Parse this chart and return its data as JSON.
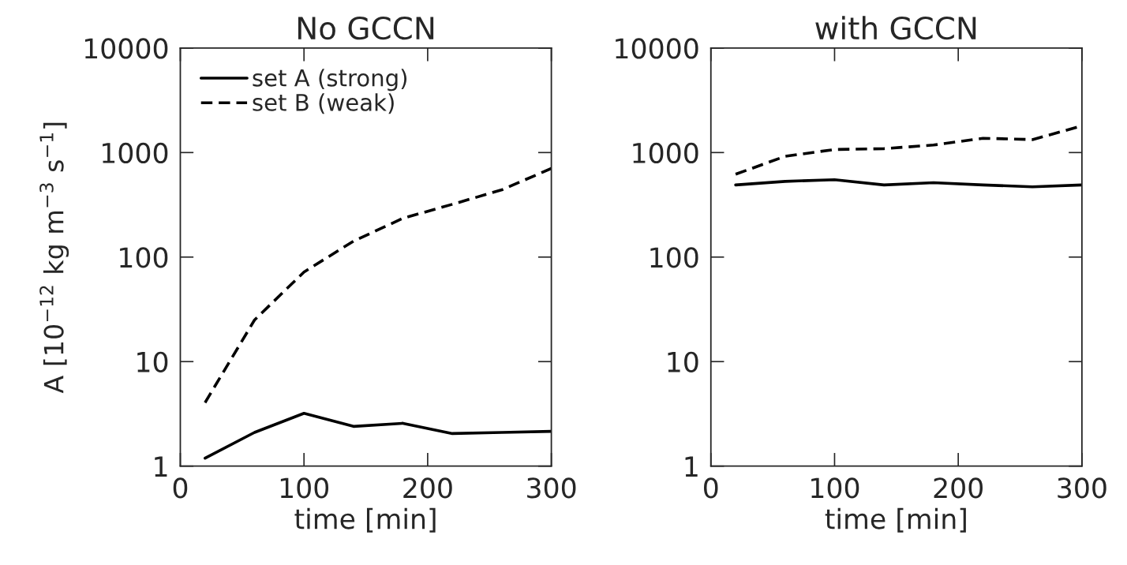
{
  "chart_data": [
    {
      "type": "line",
      "title": "No GCCN",
      "xlabel": "time [min]",
      "ylabel": "A [10$^{−12}$ kg m$^{−3}$ s$^{−1}$]",
      "log": "y",
      "grid": false,
      "legend": "top left",
      "xlim": [
        0,
        300
      ],
      "xticks": [
        0,
        100,
        200,
        300
      ],
      "ylim": [
        1,
        10000
      ],
      "yticks": [
        1,
        10,
        100,
        1000,
        10000
      ],
      "x": [
        20,
        60,
        100,
        140,
        180,
        220,
        260,
        300
      ],
      "series": [
        {
          "name": "set A (strong)",
          "color": "#000000",
          "line_style": "solid",
          "values": [
            1.19,
            2.1,
            3.2,
            2.4,
            2.57,
            2.05,
            2.1,
            2.15
          ]
        },
        {
          "name": "set B (weak)",
          "color": "#000000",
          "line_style": "dashed",
          "values": [
            4.05,
            25,
            72,
            142,
            235,
            320,
            440,
            705
          ]
        }
      ]
    },
    {
      "type": "line",
      "title": "with GCCN",
      "xlabel": "time [min]",
      "log": "y",
      "grid": false,
      "xlim": [
        0,
        300
      ],
      "xticks": [
        0,
        100,
        200,
        300
      ],
      "ylim": [
        1,
        10000
      ],
      "yticks": [
        1,
        10,
        100,
        1000,
        10000
      ],
      "x": [
        20,
        60,
        100,
        140,
        180,
        220,
        260,
        300
      ],
      "series": [
        {
          "color": "#000000",
          "line_style": "solid",
          "values": [
            490,
            530,
            550,
            490,
            515,
            490,
            470,
            490
          ]
        },
        {
          "color": "#000000",
          "line_style": "dashed",
          "values": [
            620,
            920,
            1070,
            1090,
            1180,
            1370,
            1330,
            1800
          ]
        }
      ]
    }
  ]
}
